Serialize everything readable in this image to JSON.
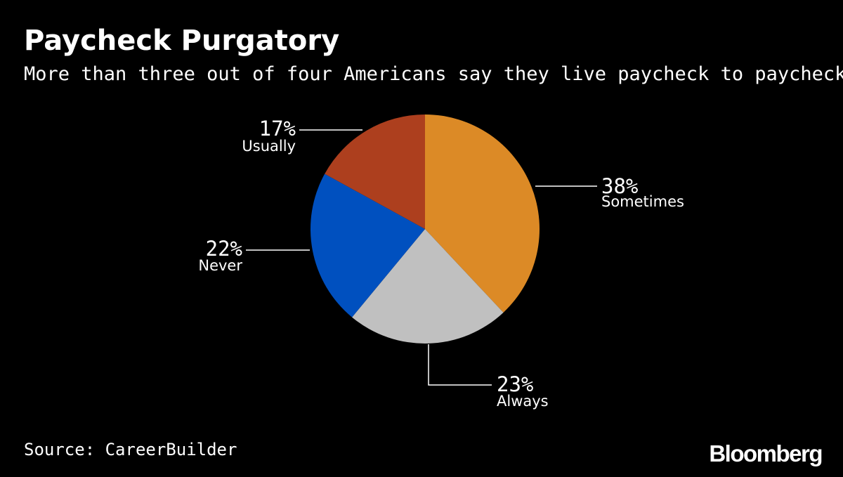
{
  "header": {
    "title": "Paycheck Purgatory",
    "subtitle": "More than three out of four Americans say they live paycheck to paycheck"
  },
  "chart_data": {
    "type": "pie",
    "title": "Paycheck Purgatory",
    "subtitle": "More than three out of four Americans say they live paycheck to paycheck",
    "slices": [
      {
        "label": "Sometimes",
        "value": 38,
        "value_label": "38%",
        "color": "#dc8a26"
      },
      {
        "label": "Always",
        "value": 23,
        "value_label": "23%",
        "color": "#c0c0c0"
      },
      {
        "label": "Never",
        "value": 22,
        "value_label": "22%",
        "color": "#0050bf"
      },
      {
        "label": "Usually",
        "value": 17,
        "value_label": "17%",
        "color": "#ad3f1e"
      }
    ],
    "start": "12 o'clock",
    "direction": "clockwise"
  },
  "footer": {
    "source": "Source: CareerBuilder",
    "brand": "Bloomberg"
  },
  "colors": {
    "background": "#000000",
    "text": "#ffffff",
    "leader_line": "#ffffff"
  }
}
